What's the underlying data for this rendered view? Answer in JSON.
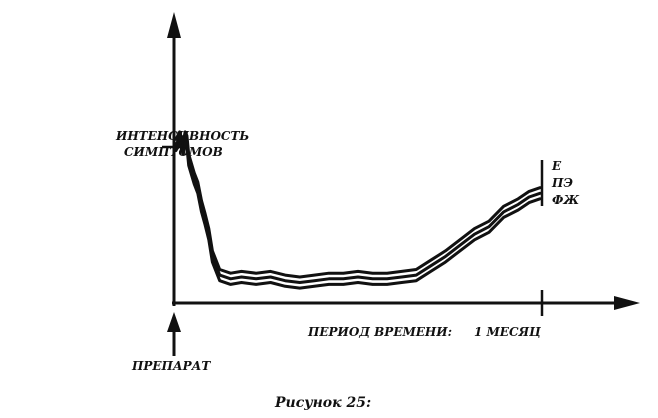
{
  "chart_data": {
    "type": "line",
    "ylabel_lines": [
      "ИНТЕНСИВНОСТЬ",
      "СИМПТОМОВ"
    ],
    "xlabel": "ПЕРИОД ВРЕМЕНИ:",
    "x_tick_label": "1 МЕСЯЦ",
    "start_label": "ПРЕПАРАТ",
    "caption": "Рисунок 25:",
    "series": [
      {
        "name": "Е",
        "values": [
          [
            0,
            0.88
          ],
          [
            1,
            0.92
          ],
          [
            2,
            0.86
          ],
          [
            2.5,
            0.92
          ],
          [
            3,
            0.9
          ],
          [
            3.5,
            0.8
          ],
          [
            5,
            0.7
          ],
          [
            6,
            0.65
          ],
          [
            7,
            0.55
          ],
          [
            8,
            0.48
          ],
          [
            9,
            0.4
          ],
          [
            10,
            0.28
          ],
          [
            12,
            0.18
          ],
          [
            15,
            0.16
          ],
          [
            18,
            0.17
          ],
          [
            22,
            0.16
          ],
          [
            26,
            0.17
          ],
          [
            30,
            0.15
          ],
          [
            34,
            0.14
          ],
          [
            38,
            0.15
          ],
          [
            42,
            0.16
          ],
          [
            46,
            0.16
          ],
          [
            50,
            0.17
          ],
          [
            54,
            0.16
          ],
          [
            58,
            0.16
          ],
          [
            62,
            0.17
          ],
          [
            66,
            0.18
          ],
          [
            70,
            0.23
          ],
          [
            74,
            0.28
          ],
          [
            78,
            0.34
          ],
          [
            82,
            0.4
          ],
          [
            86,
            0.44
          ],
          [
            90,
            0.52
          ],
          [
            94,
            0.56
          ],
          [
            97,
            0.6
          ],
          [
            100,
            0.62
          ]
        ]
      },
      {
        "name": "ПЭ",
        "values": [
          [
            0,
            0.85
          ],
          [
            1,
            0.89
          ],
          [
            2,
            0.83
          ],
          [
            2.5,
            0.89
          ],
          [
            3,
            0.87
          ],
          [
            3.5,
            0.77
          ],
          [
            5,
            0.67
          ],
          [
            6,
            0.62
          ],
          [
            7,
            0.52
          ],
          [
            8,
            0.45
          ],
          [
            9,
            0.37
          ],
          [
            10,
            0.25
          ],
          [
            12,
            0.15
          ],
          [
            15,
            0.13
          ],
          [
            18,
            0.14
          ],
          [
            22,
            0.13
          ],
          [
            26,
            0.14
          ],
          [
            30,
            0.12
          ],
          [
            34,
            0.11
          ],
          [
            38,
            0.12
          ],
          [
            42,
            0.13
          ],
          [
            46,
            0.13
          ],
          [
            50,
            0.14
          ],
          [
            54,
            0.13
          ],
          [
            58,
            0.13
          ],
          [
            62,
            0.14
          ],
          [
            66,
            0.15
          ],
          [
            70,
            0.2
          ],
          [
            74,
            0.25
          ],
          [
            78,
            0.31
          ],
          [
            82,
            0.37
          ],
          [
            86,
            0.41
          ],
          [
            90,
            0.49
          ],
          [
            94,
            0.53
          ],
          [
            97,
            0.57
          ],
          [
            100,
            0.59
          ]
        ]
      },
      {
        "name": "ФЖ",
        "values": [
          [
            0,
            0.82
          ],
          [
            1,
            0.86
          ],
          [
            2,
            0.8
          ],
          [
            2.5,
            0.86
          ],
          [
            3,
            0.84
          ],
          [
            3.5,
            0.74
          ],
          [
            5,
            0.64
          ],
          [
            6,
            0.59
          ],
          [
            7,
            0.49
          ],
          [
            8,
            0.42
          ],
          [
            9,
            0.34
          ],
          [
            10,
            0.22
          ],
          [
            12,
            0.12
          ],
          [
            15,
            0.1
          ],
          [
            18,
            0.11
          ],
          [
            22,
            0.1
          ],
          [
            26,
            0.11
          ],
          [
            30,
            0.09
          ],
          [
            34,
            0.08
          ],
          [
            38,
            0.09
          ],
          [
            42,
            0.1
          ],
          [
            46,
            0.1
          ],
          [
            50,
            0.11
          ],
          [
            54,
            0.1
          ],
          [
            58,
            0.1
          ],
          [
            62,
            0.11
          ],
          [
            66,
            0.12
          ],
          [
            70,
            0.17
          ],
          [
            74,
            0.22
          ],
          [
            78,
            0.28
          ],
          [
            82,
            0.34
          ],
          [
            86,
            0.38
          ],
          [
            90,
            0.46
          ],
          [
            94,
            0.5
          ],
          [
            97,
            0.54
          ],
          [
            100,
            0.56
          ]
        ]
      }
    ],
    "xlim": [
      0,
      100
    ],
    "ylim": [
      0,
      1
    ],
    "grid": false,
    "legend": "right"
  },
  "colors": {
    "ink": "#111111",
    "background": "#ffffff"
  }
}
